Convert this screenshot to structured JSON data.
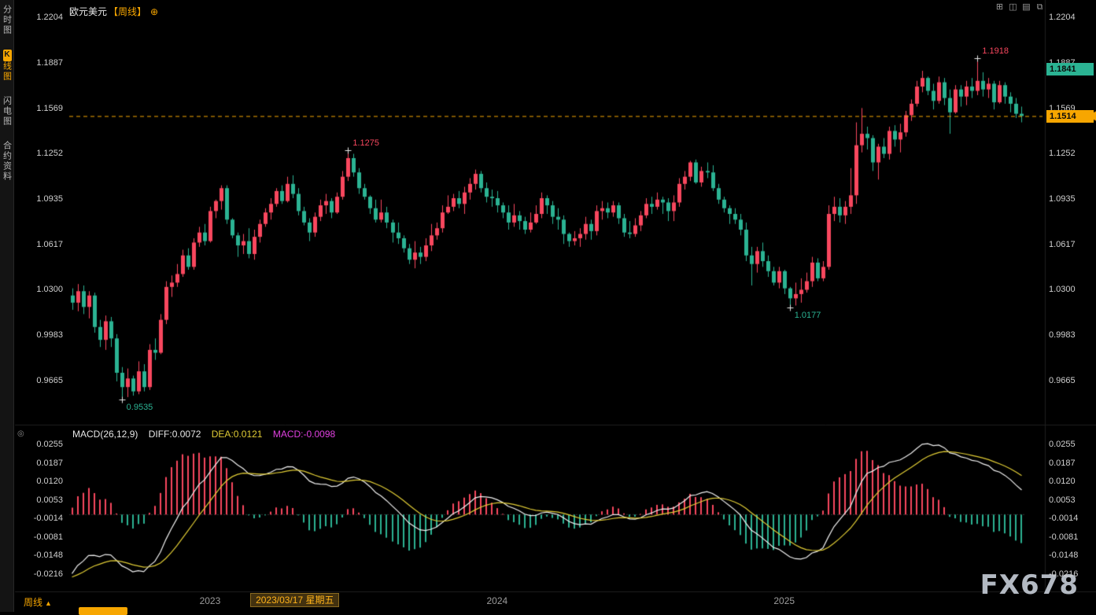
{
  "header": {
    "symbol": "欧元美元",
    "period": "【周线】",
    "add_icon": "⊕"
  },
  "toolbar": {
    "icons": [
      {
        "name": "grid-layout-icon",
        "glyph": "⊞"
      },
      {
        "name": "vertical-split-icon",
        "glyph": "◫"
      },
      {
        "name": "horizontal-split-icon",
        "glyph": "▤"
      },
      {
        "name": "popout-window-icon",
        "glyph": "⧉"
      }
    ]
  },
  "sidebar": {
    "items": [
      {
        "label": "分时图",
        "active": false
      },
      {
        "label": "K线图",
        "active": true,
        "badge": "K",
        "rest": "线图"
      },
      {
        "label": "闪电图",
        "active": false
      },
      {
        "label": "合约资料",
        "active": false
      }
    ]
  },
  "macd_panel": {
    "title": "MACD(26,12,9)",
    "diff": "DIFF:0.0072",
    "dea": "DEA:0.0121",
    "macd": "MACD:-0.0098",
    "settings_icon": "◎"
  },
  "footer": {
    "period_label": "周线",
    "period_arrow": "▲",
    "watermark": "FX678"
  },
  "colors": {
    "up": "#f8475e",
    "down": "#2bb393",
    "accent": "#f7a600",
    "diff_line": "#f0f0f0",
    "dea_line": "#e0cc35",
    "macd_value_text": "#e040e0",
    "axis_text": "#cfcfcf"
  },
  "chart_data": {
    "type": "candlestick",
    "symbol": "欧元美元",
    "period": "周线",
    "indicator": "MACD(26,12,9)",
    "macd_params": [
      26,
      12,
      9
    ],
    "last_price": 1.1514,
    "high_badge": 1.1841,
    "price_ticks": [
      1.2204,
      1.1887,
      1.1569,
      1.1252,
      1.0935,
      1.0617,
      1.03,
      0.9983,
      0.9665
    ],
    "macd_ticks": [
      0.0255,
      0.0187,
      0.012,
      0.0053,
      -0.0014,
      -0.0081,
      -0.0148,
      -0.0216
    ],
    "macd_display": {
      "diff": 0.0072,
      "dea": 0.0121,
      "macd": -0.0098
    },
    "annotations": [
      {
        "text": "0.9535",
        "index": 9,
        "price": 0.9535,
        "dir": "low"
      },
      {
        "text": "1.1275",
        "index": 50,
        "price": 1.1275,
        "dir": "high"
      },
      {
        "text": "1.0177",
        "index": 130,
        "price": 1.0177,
        "dir": "low"
      },
      {
        "text": "1.1918",
        "index": 164,
        "price": 1.1918,
        "dir": "high"
      }
    ],
    "year_marks": [
      {
        "label": "2023",
        "index": 25
      },
      {
        "label": "2024",
        "index": 77
      },
      {
        "label": "2025",
        "index": 129
      }
    ],
    "date_mark": {
      "label": "2023/03/17 星期五",
      "index": 33
    },
    "candles": [
      [
        1.026,
        1.031,
        1.016,
        1.021
      ],
      [
        1.021,
        1.034,
        1.015,
        1.029
      ],
      [
        1.029,
        1.033,
        1.013,
        1.018
      ],
      [
        1.018,
        1.029,
        1.01,
        1.026
      ],
      [
        1.026,
        1.028,
        1.0,
        1.004
      ],
      [
        1.004,
        1.009,
        0.99,
        0.995
      ],
      [
        0.995,
        1.012,
        0.988,
        1.008
      ],
      [
        1.008,
        1.011,
        0.99,
        0.996
      ],
      [
        0.996,
        0.999,
        0.966,
        0.972
      ],
      [
        0.972,
        0.976,
        0.9535,
        0.962
      ],
      [
        0.962,
        0.975,
        0.955,
        0.968
      ],
      [
        0.968,
        0.97,
        0.956,
        0.959
      ],
      [
        0.959,
        0.98,
        0.957,
        0.973
      ],
      [
        0.973,
        0.978,
        0.959,
        0.962
      ],
      [
        0.962,
        0.992,
        0.96,
        0.988
      ],
      [
        0.988,
        0.996,
        0.981,
        0.986
      ],
      [
        0.986,
        1.013,
        0.985,
        1.009
      ],
      [
        1.009,
        1.036,
        1.006,
        1.032
      ],
      [
        1.032,
        1.04,
        1.025,
        1.035
      ],
      [
        1.035,
        1.048,
        1.032,
        1.041
      ],
      [
        1.041,
        1.058,
        1.039,
        1.054
      ],
      [
        1.054,
        1.059,
        1.044,
        1.046
      ],
      [
        1.046,
        1.066,
        1.044,
        1.063
      ],
      [
        1.063,
        1.074,
        1.06,
        1.07
      ],
      [
        1.07,
        1.076,
        1.061,
        1.064
      ],
      [
        1.064,
        1.088,
        1.063,
        1.085
      ],
      [
        1.085,
        1.093,
        1.08,
        1.092
      ],
      [
        1.092,
        1.103,
        1.086,
        1.101
      ],
      [
        1.101,
        1.103,
        1.076,
        1.079
      ],
      [
        1.079,
        1.08,
        1.066,
        1.068
      ],
      [
        1.068,
        1.07,
        1.053,
        1.061
      ],
      [
        1.061,
        1.069,
        1.055,
        1.064
      ],
      [
        1.064,
        1.073,
        1.052,
        1.055
      ],
      [
        1.055,
        1.072,
        1.051,
        1.067
      ],
      [
        1.067,
        1.079,
        1.063,
        1.076
      ],
      [
        1.076,
        1.087,
        1.074,
        1.084
      ],
      [
        1.084,
        1.094,
        1.079,
        1.09
      ],
      [
        1.09,
        1.101,
        1.088,
        1.099
      ],
      [
        1.099,
        1.103,
        1.09,
        1.092
      ],
      [
        1.092,
        1.109,
        1.091,
        1.104
      ],
      [
        1.104,
        1.11,
        1.094,
        1.097
      ],
      [
        1.097,
        1.101,
        1.082,
        1.085
      ],
      [
        1.085,
        1.088,
        1.075,
        1.077
      ],
      [
        1.077,
        1.08,
        1.064,
        1.07
      ],
      [
        1.07,
        1.084,
        1.067,
        1.081
      ],
      [
        1.081,
        1.093,
        1.078,
        1.089
      ],
      [
        1.089,
        1.097,
        1.083,
        1.092
      ],
      [
        1.092,
        1.094,
        1.08,
        1.084
      ],
      [
        1.084,
        1.098,
        1.083,
        1.095
      ],
      [
        1.095,
        1.113,
        1.093,
        1.109
      ],
      [
        1.109,
        1.1275,
        1.106,
        1.122
      ],
      [
        1.122,
        1.125,
        1.109,
        1.112
      ],
      [
        1.112,
        1.115,
        1.097,
        1.101
      ],
      [
        1.101,
        1.104,
        1.093,
        1.095
      ],
      [
        1.095,
        1.096,
        1.083,
        1.087
      ],
      [
        1.087,
        1.093,
        1.077,
        1.079
      ],
      [
        1.079,
        1.093,
        1.077,
        1.084
      ],
      [
        1.084,
        1.088,
        1.073,
        1.077
      ],
      [
        1.077,
        1.079,
        1.063,
        1.07
      ],
      [
        1.07,
        1.077,
        1.062,
        1.066
      ],
      [
        1.066,
        1.068,
        1.056,
        1.059
      ],
      [
        1.059,
        1.062,
        1.048,
        1.051
      ],
      [
        1.051,
        1.064,
        1.045,
        1.056
      ],
      [
        1.056,
        1.06,
        1.048,
        1.053
      ],
      [
        1.053,
        1.066,
        1.05,
        1.061
      ],
      [
        1.061,
        1.076,
        1.057,
        1.068
      ],
      [
        1.068,
        1.077,
        1.065,
        1.073
      ],
      [
        1.073,
        1.089,
        1.07,
        1.084
      ],
      [
        1.084,
        1.096,
        1.083,
        1.088
      ],
      [
        1.088,
        1.097,
        1.085,
        1.094
      ],
      [
        1.094,
        1.099,
        1.087,
        1.09
      ],
      [
        1.09,
        1.102,
        1.083,
        1.098
      ],
      [
        1.098,
        1.108,
        1.093,
        1.104
      ],
      [
        1.104,
        1.114,
        1.1,
        1.111
      ],
      [
        1.111,
        1.113,
        1.098,
        1.101
      ],
      [
        1.101,
        1.105,
        1.091,
        1.095
      ],
      [
        1.095,
        1.1,
        1.088,
        1.094
      ],
      [
        1.094,
        1.099,
        1.084,
        1.089
      ],
      [
        1.089,
        1.091,
        1.08,
        1.084
      ],
      [
        1.084,
        1.089,
        1.072,
        1.077
      ],
      [
        1.077,
        1.09,
        1.074,
        1.082
      ],
      [
        1.082,
        1.085,
        1.072,
        1.078
      ],
      [
        1.078,
        1.081,
        1.069,
        1.072
      ],
      [
        1.072,
        1.084,
        1.07,
        1.077
      ],
      [
        1.077,
        1.089,
        1.076,
        1.083
      ],
      [
        1.083,
        1.098,
        1.08,
        1.094
      ],
      [
        1.094,
        1.096,
        1.083,
        1.089
      ],
      [
        1.089,
        1.092,
        1.076,
        1.081
      ],
      [
        1.081,
        1.087,
        1.072,
        1.079
      ],
      [
        1.079,
        1.082,
        1.062,
        1.069
      ],
      [
        1.069,
        1.07,
        1.06,
        1.064
      ],
      [
        1.064,
        1.071,
        1.061,
        1.066
      ],
      [
        1.066,
        1.073,
        1.06,
        1.069
      ],
      [
        1.069,
        1.081,
        1.065,
        1.076
      ],
      [
        1.076,
        1.079,
        1.065,
        1.071
      ],
      [
        1.071,
        1.089,
        1.068,
        1.085
      ],
      [
        1.085,
        1.092,
        1.079,
        1.087
      ],
      [
        1.087,
        1.091,
        1.08,
        1.084
      ],
      [
        1.084,
        1.092,
        1.081,
        1.089
      ],
      [
        1.089,
        1.091,
        1.076,
        1.08
      ],
      [
        1.08,
        1.083,
        1.067,
        1.07
      ],
      [
        1.07,
        1.078,
        1.066,
        1.069
      ],
      [
        1.069,
        1.08,
        1.067,
        1.075
      ],
      [
        1.075,
        1.085,
        1.071,
        1.082
      ],
      [
        1.082,
        1.094,
        1.08,
        1.09
      ],
      [
        1.09,
        1.095,
        1.083,
        1.088
      ],
      [
        1.088,
        1.098,
        1.086,
        1.093
      ],
      [
        1.093,
        1.095,
        1.083,
        1.091
      ],
      [
        1.091,
        1.094,
        1.078,
        1.085
      ],
      [
        1.085,
        1.096,
        1.078,
        1.091
      ],
      [
        1.091,
        1.108,
        1.088,
        1.104
      ],
      [
        1.104,
        1.113,
        1.1,
        1.109
      ],
      [
        1.109,
        1.1201,
        1.106,
        1.119
      ],
      [
        1.119,
        1.121,
        1.104,
        1.105
      ],
      [
        1.105,
        1.116,
        1.102,
        1.113
      ],
      [
        1.113,
        1.119,
        1.108,
        1.112
      ],
      [
        1.112,
        1.117,
        1.099,
        1.101
      ],
      [
        1.101,
        1.104,
        1.09,
        1.093
      ],
      [
        1.093,
        1.095,
        1.084,
        1.087
      ],
      [
        1.087,
        1.089,
        1.076,
        1.083
      ],
      [
        1.083,
        1.087,
        1.076,
        1.079
      ],
      [
        1.079,
        1.083,
        1.068,
        1.072
      ],
      [
        1.072,
        1.077,
        1.05,
        1.054
      ],
      [
        1.054,
        1.06,
        1.033,
        1.048
      ],
      [
        1.048,
        1.06,
        1.042,
        1.057
      ],
      [
        1.057,
        1.063,
        1.046,
        1.05
      ],
      [
        1.05,
        1.054,
        1.039,
        1.043
      ],
      [
        1.043,
        1.046,
        1.033,
        1.035
      ],
      [
        1.035,
        1.046,
        1.031,
        1.043
      ],
      [
        1.043,
        1.044,
        1.027,
        1.031
      ],
      [
        1.031,
        1.032,
        1.0177,
        1.024
      ],
      [
        1.024,
        1.035,
        1.019,
        1.027
      ],
      [
        1.027,
        1.038,
        1.021,
        1.03
      ],
      [
        1.03,
        1.042,
        1.028,
        1.036
      ],
      [
        1.036,
        1.053,
        1.032,
        1.049
      ],
      [
        1.049,
        1.052,
        1.036,
        1.038
      ],
      [
        1.038,
        1.05,
        1.036,
        1.046
      ],
      [
        1.046,
        1.089,
        1.044,
        1.083
      ],
      [
        1.083,
        1.095,
        1.078,
        1.088
      ],
      [
        1.088,
        1.094,
        1.077,
        1.082
      ],
      [
        1.082,
        1.092,
        1.076,
        1.088
      ],
      [
        1.088,
        1.115,
        1.083,
        1.096
      ],
      [
        1.096,
        1.147,
        1.09,
        1.131
      ],
      [
        1.131,
        1.157,
        1.126,
        1.139
      ],
      [
        1.139,
        1.144,
        1.128,
        1.136
      ],
      [
        1.136,
        1.138,
        1.113,
        1.119
      ],
      [
        1.119,
        1.132,
        1.107,
        1.13
      ],
      [
        1.13,
        1.136,
        1.122,
        1.125
      ],
      [
        1.125,
        1.144,
        1.121,
        1.141
      ],
      [
        1.141,
        1.145,
        1.13,
        1.135
      ],
      [
        1.135,
        1.146,
        1.126,
        1.14
      ],
      [
        1.14,
        1.155,
        1.137,
        1.152
      ],
      [
        1.152,
        1.163,
        1.148,
        1.16
      ],
      [
        1.16,
        1.176,
        1.158,
        1.172
      ],
      [
        1.172,
        1.183,
        1.168,
        1.178
      ],
      [
        1.178,
        1.179,
        1.166,
        1.169
      ],
      [
        1.169,
        1.174,
        1.156,
        1.162
      ],
      [
        1.162,
        1.179,
        1.16,
        1.175
      ],
      [
        1.175,
        1.178,
        1.159,
        1.164
      ],
      [
        1.164,
        1.17,
        1.139,
        1.154
      ],
      [
        1.154,
        1.173,
        1.153,
        1.17
      ],
      [
        1.17,
        1.173,
        1.158,
        1.165
      ],
      [
        1.165,
        1.176,
        1.159,
        1.172
      ],
      [
        1.172,
        1.178,
        1.164,
        1.169
      ],
      [
        1.169,
        1.1918,
        1.166,
        1.176
      ],
      [
        1.176,
        1.182,
        1.165,
        1.17
      ],
      [
        1.17,
        1.178,
        1.164,
        1.174
      ],
      [
        1.174,
        1.176,
        1.156,
        1.161
      ],
      [
        1.161,
        1.176,
        1.16,
        1.173
      ],
      [
        1.173,
        1.175,
        1.16,
        1.165
      ],
      [
        1.165,
        1.168,
        1.154,
        1.16
      ],
      [
        1.16,
        1.164,
        1.15,
        1.153
      ],
      [
        1.153,
        1.158,
        1.147,
        1.1514
      ]
    ]
  }
}
